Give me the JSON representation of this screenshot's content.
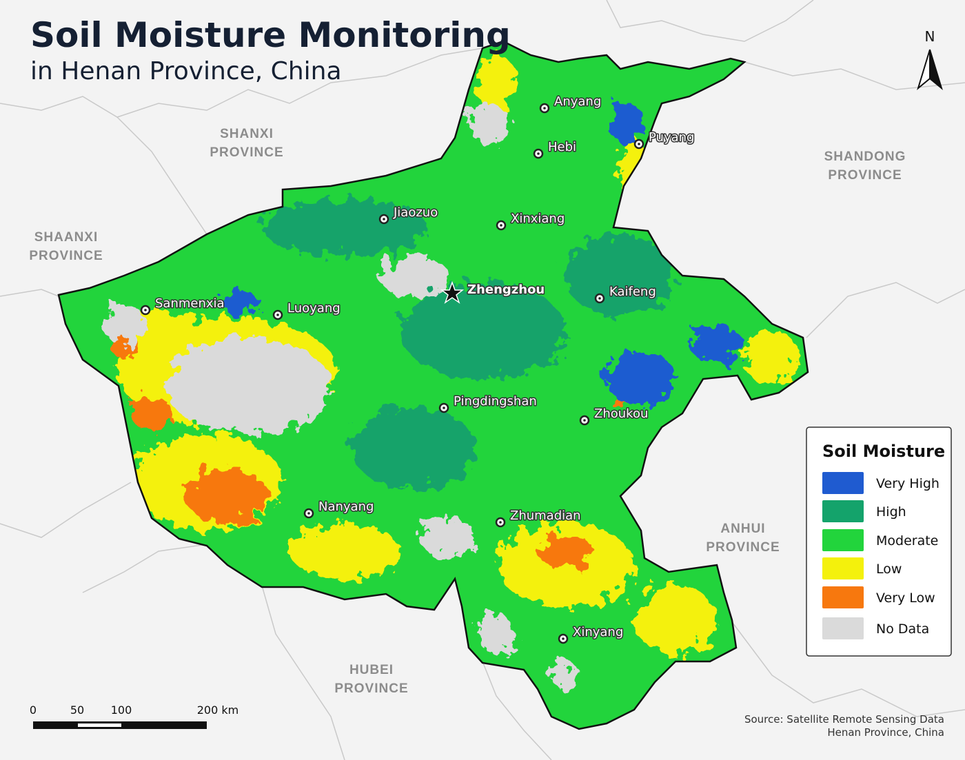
{
  "title": "Soil Moisture Monitoring",
  "subtitle": "in Henan Province, China",
  "north_label": "N",
  "provinces": [
    {
      "lines": [
        "SHANXI",
        "PROVINCE"
      ]
    },
    {
      "lines": [
        "SHANDONG",
        "PROVINCE"
      ]
    },
    {
      "lines": [
        "SHAANXI",
        "PROVINCE"
      ]
    },
    {
      "lines": [
        "ANHUI",
        "PROVINCE"
      ]
    },
    {
      "lines": [
        "HUBEI",
        "PROVINCE"
      ]
    }
  ],
  "capital": {
    "name": "Zhengzhou"
  },
  "cities": [
    {
      "name": "Anyang"
    },
    {
      "name": "Hebi"
    },
    {
      "name": "Puyang"
    },
    {
      "name": "Jiaozuo"
    },
    {
      "name": "Xinxiang"
    },
    {
      "name": "Kaifeng"
    },
    {
      "name": "Sanmenxia"
    },
    {
      "name": "Luoyang"
    },
    {
      "name": "Pingdingshan"
    },
    {
      "name": "Zhoukou"
    },
    {
      "name": "Nanyang"
    },
    {
      "name": "Zhumadian"
    },
    {
      "name": "Xinyang"
    }
  ],
  "legend": {
    "title": "Soil Moisture",
    "items": [
      {
        "label": "Very High",
        "color": "#1f5bd0"
      },
      {
        "label": "High",
        "color": "#14a36b"
      },
      {
        "label": "Moderate",
        "color": "#22d43c"
      },
      {
        "label": "Low",
        "color": "#f4f10c"
      },
      {
        "label": "Very Low",
        "color": "#f7780e"
      },
      {
        "label": "No Data",
        "color": "#dadada"
      }
    ]
  },
  "scale_bar": {
    "labels": [
      "0",
      "50",
      "100",
      "200 km"
    ]
  },
  "source": [
    "Source: Satellite Remote Sensing Data",
    "Henan Province, China"
  ]
}
